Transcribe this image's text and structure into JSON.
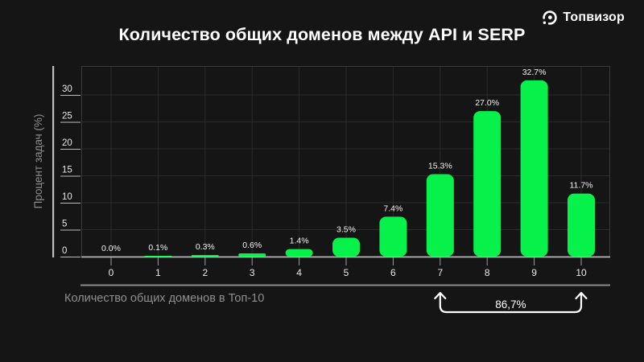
{
  "brand": {
    "name": "Топвизор"
  },
  "title": "Количество общих доменов между API и SERP",
  "chart_data": {
    "type": "bar",
    "title": "Количество общих доменов между API и SERP",
    "xlabel": "Количество общих доменов в Топ-10",
    "ylabel": "Процент задач (%)",
    "categories": [
      "0",
      "1",
      "2",
      "3",
      "4",
      "5",
      "6",
      "7",
      "8",
      "9",
      "10"
    ],
    "values": [
      0.0,
      0.1,
      0.3,
      0.6,
      1.4,
      3.5,
      7.4,
      15.3,
      27.0,
      32.7,
      11.7
    ],
    "bar_labels": [
      "0.0%",
      "0.1%",
      "0.3%",
      "0.6%",
      "1.4%",
      "3.5%",
      "7.4%",
      "15.3%",
      "27.0%",
      "32.7%",
      "11.7%"
    ],
    "ylim": [
      0,
      35
    ],
    "yticks": [
      0,
      5,
      10,
      15,
      20,
      25,
      30
    ],
    "grid": true,
    "legend": "none",
    "annotation": {
      "label": "86,7%",
      "from_category": "7",
      "to_category": "10"
    },
    "colors": {
      "background": "#151515",
      "bar": "#06F24B",
      "grid": "#2b2b2b",
      "plot_border": "#3a3a3a",
      "axis": "#bdbdbd",
      "tick": "#9b9b9b",
      "tick_label": "#e8e8e8",
      "bar_label": "#f2f2f2",
      "axis_title": "#8f8f8f",
      "separator": "#8c8c8c",
      "annotation": "#ffffff",
      "title": "#ffffff"
    }
  }
}
